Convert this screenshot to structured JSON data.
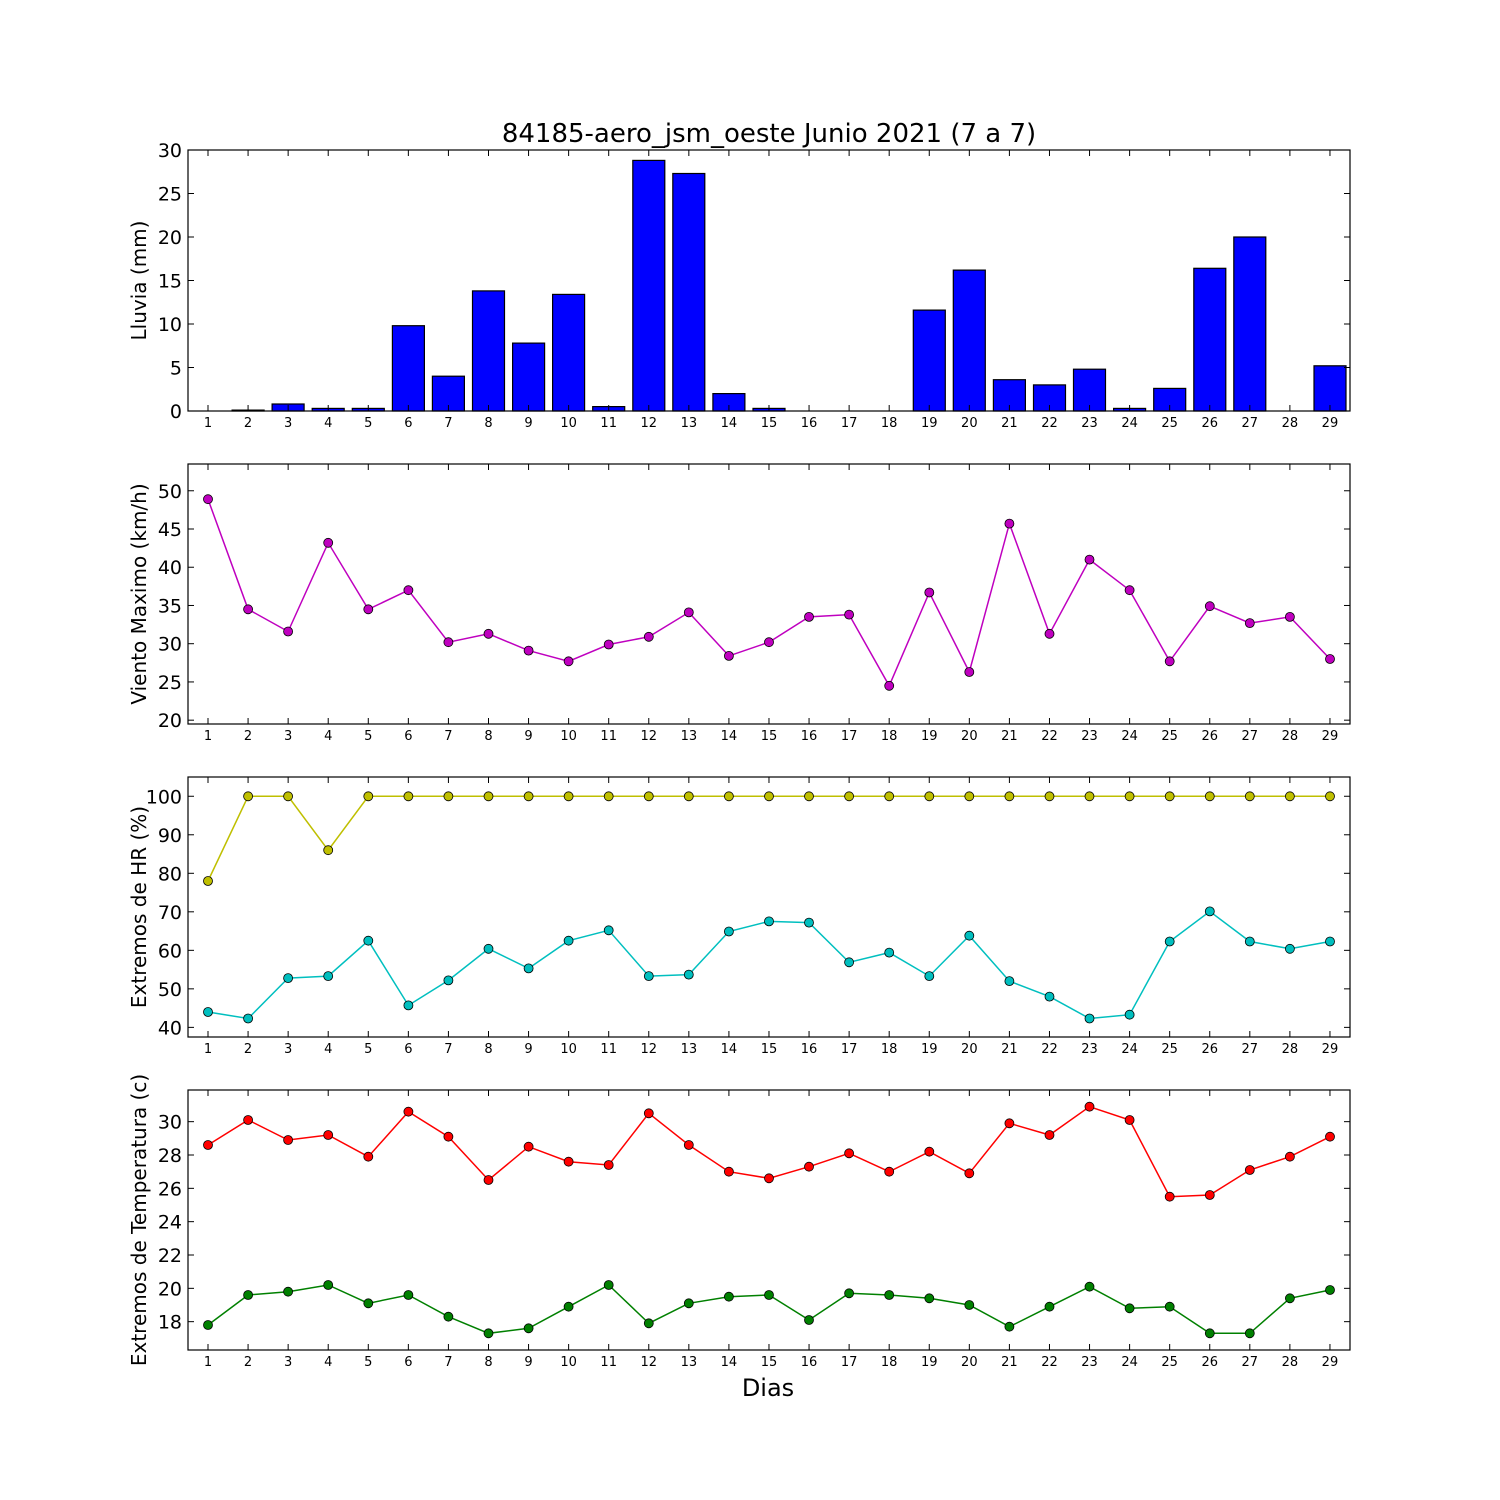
{
  "title": "84185-aero_jsm_oeste Junio 2021  (7 a 7)",
  "chart_data": [
    {
      "type": "bar",
      "ylabel": "Lluvia (mm)",
      "ylim": [
        0,
        30
      ],
      "yticks": [
        0,
        5,
        10,
        15,
        20,
        25,
        30
      ],
      "color": "#0000ff",
      "categories": [
        "1",
        "2",
        "3",
        "4",
        "5",
        "6",
        "7",
        "8",
        "9",
        "10",
        "11",
        "12",
        "13",
        "14",
        "15",
        "16",
        "17",
        "18",
        "19",
        "20",
        "21",
        "22",
        "23",
        "24",
        "25",
        "26",
        "27",
        "28",
        "29"
      ],
      "values": [
        0,
        0.1,
        0.8,
        0.3,
        0.3,
        9.8,
        4.0,
        13.8,
        7.8,
        13.4,
        0.5,
        28.8,
        27.3,
        2.0,
        0.3,
        0,
        0,
        0,
        11.6,
        16.2,
        3.6,
        3.0,
        4.8,
        0.3,
        2.6,
        16.4,
        20.0,
        0,
        5.2
      ]
    },
    {
      "type": "line",
      "ylabel": "Viento Maximo (km/h)",
      "ylim": [
        19.5,
        53.5
      ],
      "yticks": [
        20,
        25,
        30,
        35,
        40,
        45,
        50
      ],
      "categories": [
        "1",
        "2",
        "3",
        "4",
        "5",
        "6",
        "7",
        "8",
        "9",
        "10",
        "11",
        "12",
        "13",
        "14",
        "15",
        "16",
        "17",
        "18",
        "19",
        "20",
        "21",
        "22",
        "23",
        "24",
        "25",
        "26",
        "27",
        "28",
        "29"
      ],
      "series": [
        {
          "color": "#bf00bf",
          "values": [
            48.9,
            34.5,
            31.6,
            43.2,
            34.5,
            37.0,
            30.2,
            31.3,
            29.1,
            27.7,
            29.9,
            30.9,
            34.1,
            28.4,
            30.2,
            33.5,
            33.8,
            24.5,
            36.7,
            26.3,
            45.7,
            31.3,
            41.0,
            37.0,
            27.7,
            34.9,
            32.7,
            33.5,
            28.0
          ]
        }
      ]
    },
    {
      "type": "line",
      "ylabel": "Extremos de HR (%)",
      "ylim": [
        37.5,
        105
      ],
      "yticks": [
        40,
        50,
        60,
        70,
        80,
        90,
        100
      ],
      "categories": [
        "1",
        "2",
        "3",
        "4",
        "5",
        "6",
        "7",
        "8",
        "9",
        "10",
        "11",
        "12",
        "13",
        "14",
        "15",
        "16",
        "17",
        "18",
        "19",
        "20",
        "21",
        "22",
        "23",
        "24",
        "25",
        "26",
        "27",
        "28",
        "29"
      ],
      "series": [
        {
          "color": "#bfbf00",
          "values": [
            78,
            100,
            100,
            86,
            100,
            100,
            100,
            100,
            100,
            100,
            100,
            100,
            100,
            100,
            100,
            100,
            100,
            100,
            100,
            100,
            100,
            100,
            100,
            100,
            100,
            100,
            100,
            100,
            100
          ]
        },
        {
          "color": "#00bfbf",
          "values": [
            44,
            42.3,
            52.8,
            53.3,
            62.5,
            45.7,
            52.2,
            60.4,
            55.3,
            62.5,
            65.2,
            53.3,
            53.7,
            64.9,
            67.5,
            67.2,
            56.9,
            59.4,
            53.3,
            63.8,
            52.0,
            48.0,
            42.3,
            43.3,
            62.3,
            70.1,
            62.3,
            60.4,
            62.3
          ]
        }
      ]
    },
    {
      "type": "line",
      "ylabel": "Extremos de Temperatura (c)",
      "ylim": [
        16.3,
        31.9
      ],
      "yticks": [
        18,
        20,
        22,
        24,
        26,
        28,
        30
      ],
      "categories": [
        "1",
        "2",
        "3",
        "4",
        "5",
        "6",
        "7",
        "8",
        "9",
        "10",
        "11",
        "12",
        "13",
        "14",
        "15",
        "16",
        "17",
        "18",
        "19",
        "20",
        "21",
        "22",
        "23",
        "24",
        "25",
        "26",
        "27",
        "28",
        "29"
      ],
      "series": [
        {
          "color": "#ff0000",
          "values": [
            28.6,
            30.1,
            28.9,
            29.2,
            27.9,
            30.6,
            29.1,
            26.5,
            28.5,
            27.6,
            27.4,
            30.5,
            28.6,
            27.0,
            26.6,
            27.3,
            28.1,
            27.0,
            28.2,
            26.9,
            29.9,
            29.2,
            30.9,
            30.1,
            25.5,
            25.6,
            27.1,
            27.9,
            29.1
          ]
        },
        {
          "color": "#008000",
          "values": [
            17.8,
            19.6,
            19.8,
            20.2,
            19.1,
            19.6,
            18.3,
            17.3,
            17.6,
            18.9,
            20.2,
            17.9,
            19.1,
            19.5,
            19.6,
            18.1,
            19.7,
            19.6,
            19.4,
            19.0,
            17.7,
            18.9,
            20.1,
            18.8,
            18.9,
            17.3,
            17.3,
            19.4,
            19.9
          ]
        }
      ]
    }
  ],
  "xlabel": "Dias"
}
